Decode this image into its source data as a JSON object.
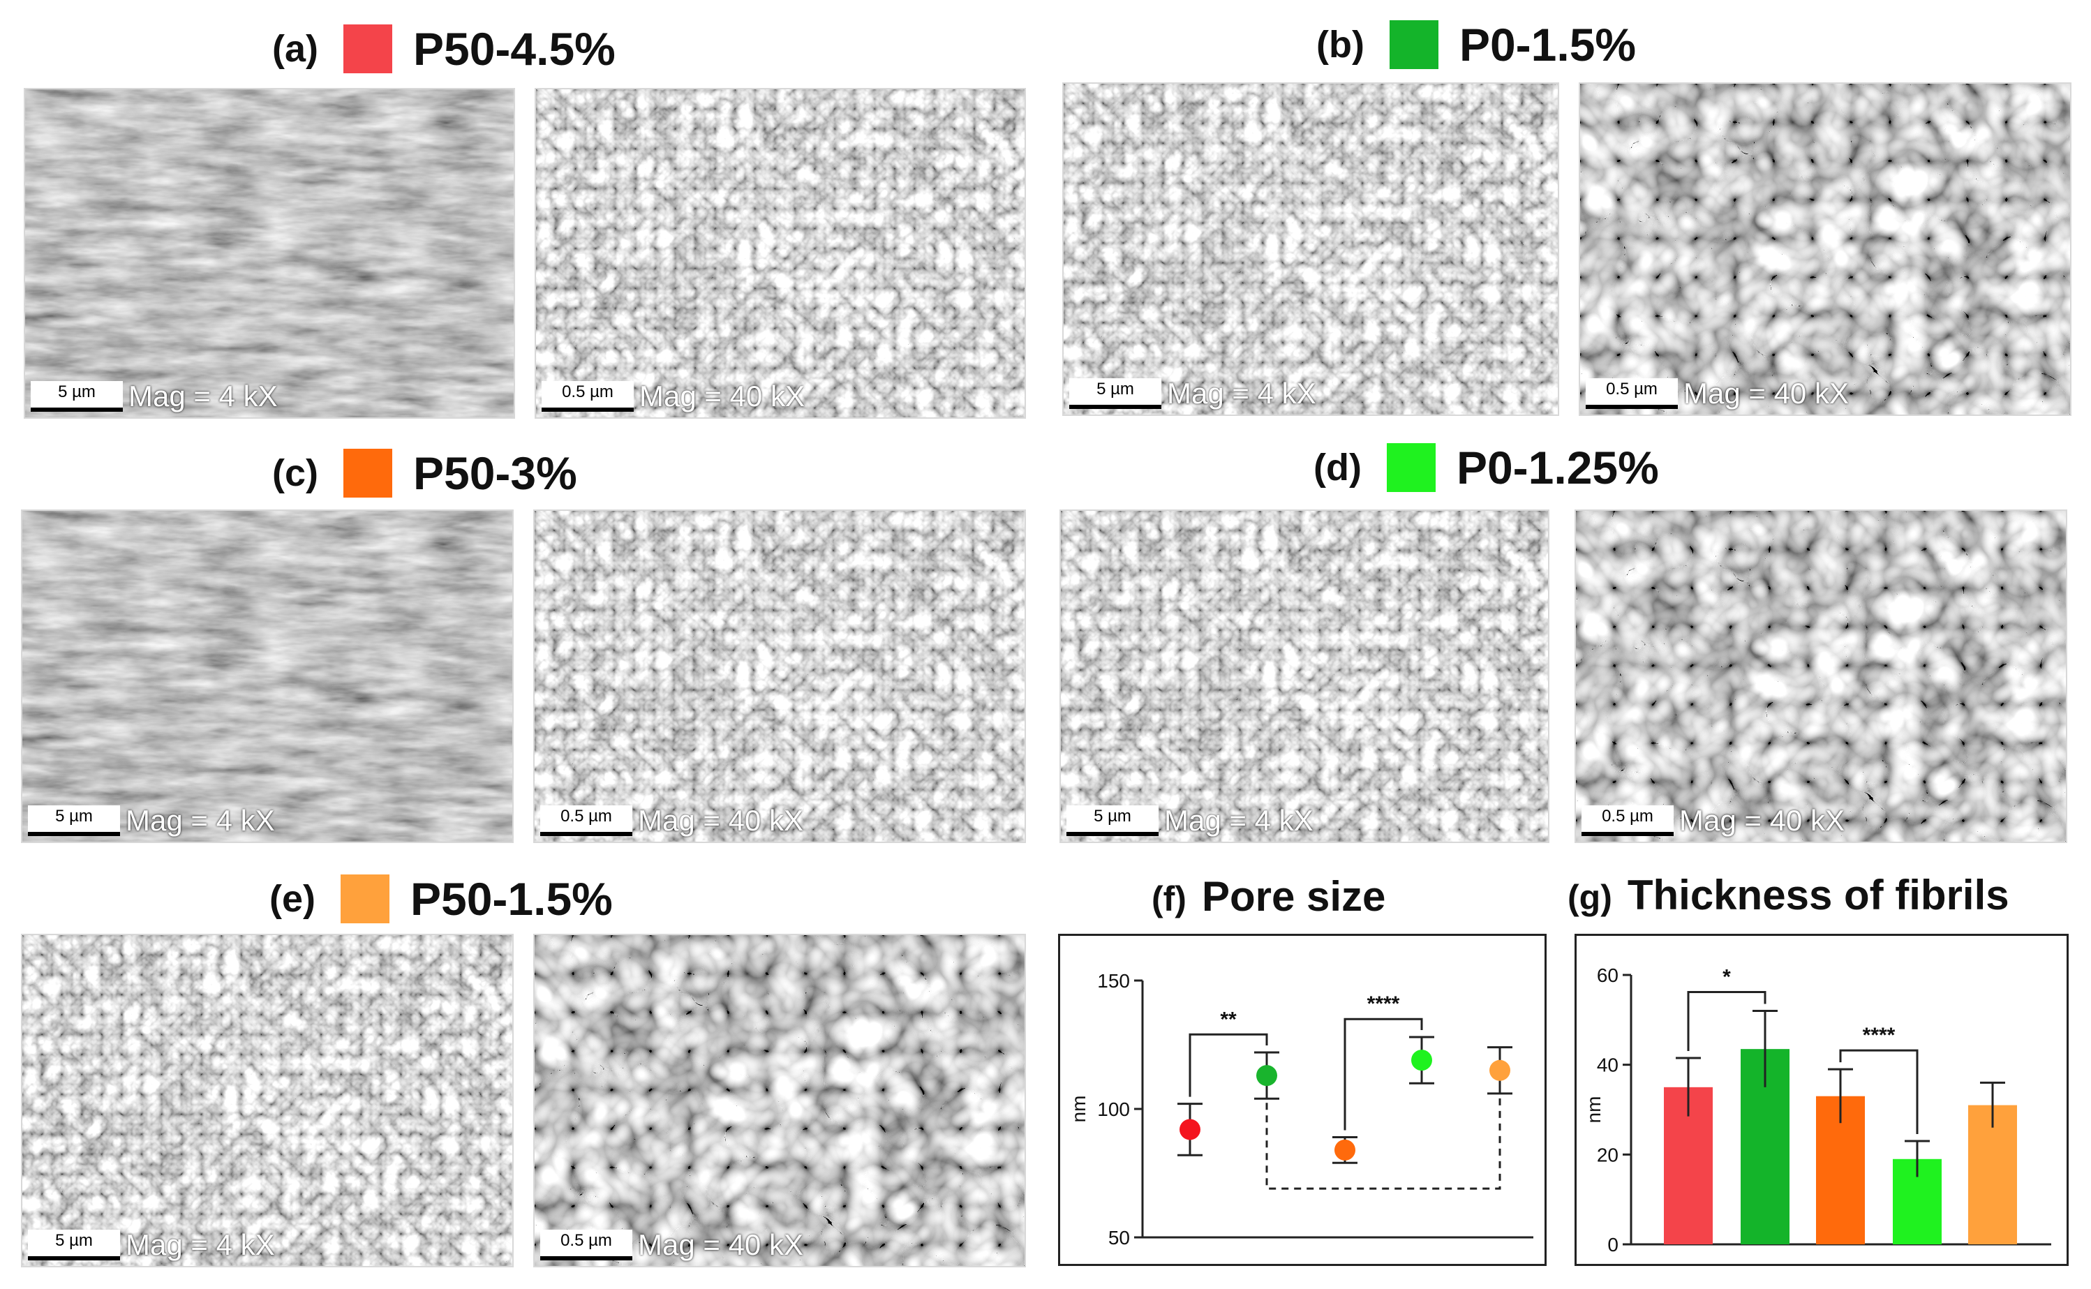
{
  "panels": {
    "a": {
      "letter": "(a)",
      "name": "P50-4.5%",
      "color": "#f4444a"
    },
    "b": {
      "letter": "(b)",
      "name": "P0-1.5%",
      "color": "#14b42a"
    },
    "c": {
      "letter": "(c)",
      "name": "P50-3%",
      "color": "#ff6a0c"
    },
    "d": {
      "letter": "(d)",
      "name": "P0-1.25%",
      "color": "#1ff21f"
    },
    "e": {
      "letter": "(e)",
      "name": "P50-1.5%",
      "color": "#ffa13c"
    }
  },
  "micrographs": {
    "low": {
      "scale_bar": "5 µm",
      "magnification": "Mag = 4 kX"
    },
    "high": {
      "scale_bar": "0.5 µm",
      "magnification": "Mag = 40 kX"
    }
  },
  "chart_data": [
    {
      "type": "scatter",
      "letter": "(f)",
      "title": "Pore size",
      "ylabel": "nm",
      "ylim": [
        50,
        150
      ],
      "yticks": [
        50,
        100,
        150
      ],
      "categories": [
        "P50-4.5%",
        "P0-1.5%",
        "P50-3%",
        "P0-1.25%",
        "P50-1.5%"
      ],
      "values": [
        92,
        113,
        84,
        119,
        115
      ],
      "errors": [
        10,
        9,
        5,
        9,
        9
      ],
      "colors": [
        "#f4141e",
        "#19b42d",
        "#ff6a0c",
        "#1ff21f",
        "#ffa13c"
      ],
      "significance": [
        {
          "from": 0,
          "to": 1,
          "label": "**",
          "style": "solid"
        },
        {
          "from": 2,
          "to": 3,
          "label": "****",
          "style": "solid"
        },
        {
          "from": 1,
          "to": 4,
          "label": "",
          "style": "dashed"
        }
      ],
      "grid": false
    },
    {
      "type": "bar",
      "letter": "(g)",
      "title": "Thickness of fibrils",
      "ylabel": "nm",
      "ylim": [
        0,
        60
      ],
      "yticks": [
        0,
        20,
        40,
        60
      ],
      "categories": [
        "P50-4.5%",
        "P0-1.5%",
        "P50-3%",
        "P0-1.25%",
        "P50-1.5%"
      ],
      "values": [
        35,
        43.5,
        33,
        19,
        31
      ],
      "errors": [
        6.5,
        8.5,
        6,
        4,
        5
      ],
      "colors": [
        "#f4444a",
        "#14b42a",
        "#ff6a0c",
        "#1ff21f",
        "#ffa13c"
      ],
      "significance": [
        {
          "from": 0,
          "to": 1,
          "label": "*",
          "style": "solid"
        },
        {
          "from": 2,
          "to": 3,
          "label": "****",
          "style": "solid"
        }
      ],
      "grid": false
    }
  ]
}
